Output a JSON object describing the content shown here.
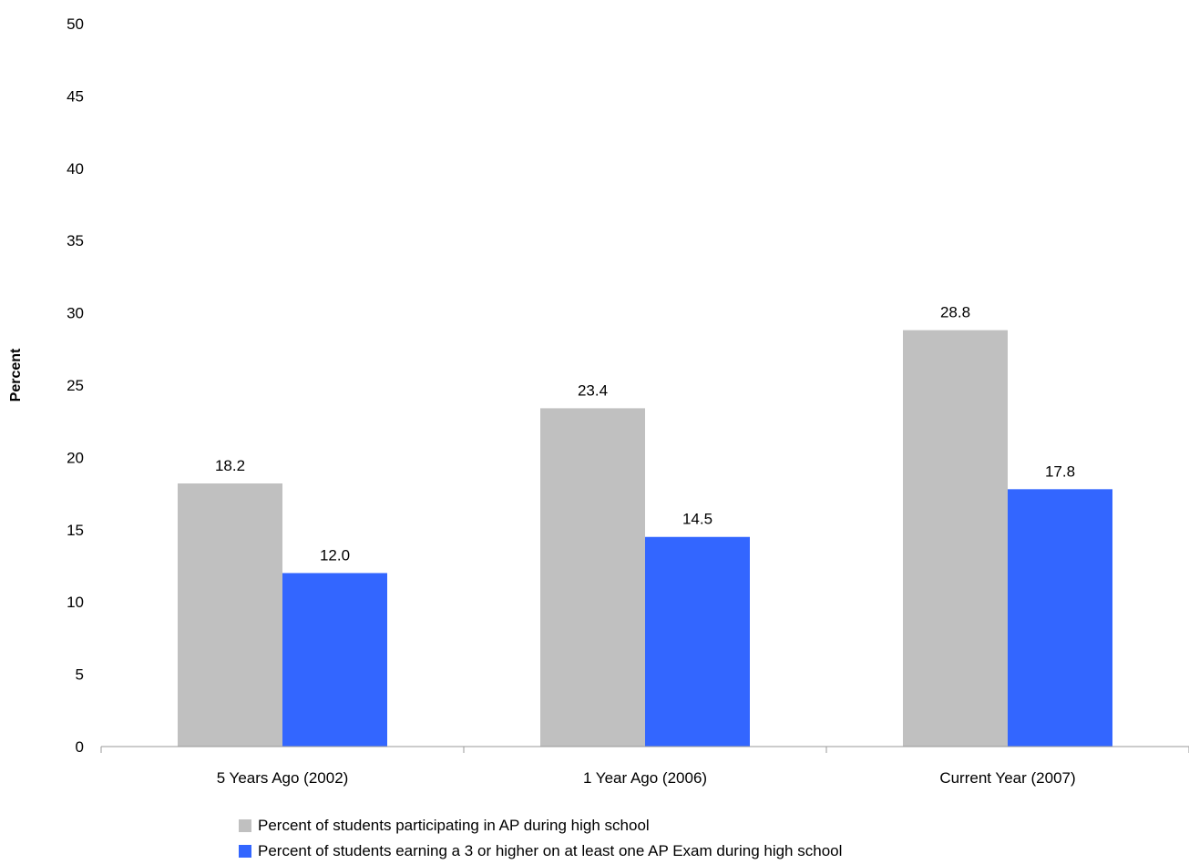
{
  "chart_data": {
    "type": "bar",
    "title": "",
    "xlabel": "",
    "ylabel": "Percent",
    "ylim": [
      0,
      50
    ],
    "yticks": [
      0,
      5,
      10,
      15,
      20,
      25,
      30,
      35,
      40,
      45,
      50
    ],
    "grid": false,
    "legend_position": "bottom",
    "categories": [
      "5 Years Ago (2002)",
      "1 Year Ago (2006)",
      "Current Year (2007)"
    ],
    "series": [
      {
        "name": "Percent of students participating in AP during high school",
        "color": "#c0c0c0",
        "values": [
          18.2,
          23.4,
          28.8
        ],
        "labels": [
          "18.2",
          "23.4",
          "28.8"
        ]
      },
      {
        "name": "Percent of students earning a 3 or higher on at least one AP Exam during high school",
        "color": "#3366ff",
        "values": [
          12.0,
          14.5,
          17.8
        ],
        "labels": [
          "12.0",
          "14.5",
          "17.8"
        ]
      }
    ]
  }
}
